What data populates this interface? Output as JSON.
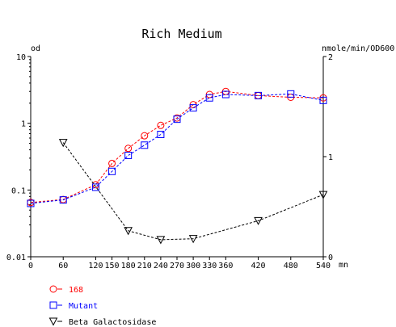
{
  "chart_data": {
    "type": "line",
    "title": "Rich Medium",
    "x": {
      "unit": "mn",
      "range": [
        0,
        540
      ],
      "ticks": [
        0,
        60,
        120,
        150,
        180,
        210,
        240,
        270,
        300,
        330,
        360,
        420,
        480,
        540
      ]
    },
    "y_left": {
      "label": "od",
      "scale": "log",
      "range": [
        0.01,
        10
      ],
      "ticks": [
        0.01,
        0.1,
        1,
        10
      ],
      "tick_labels": [
        "0.01",
        "0.1",
        "1",
        "10"
      ]
    },
    "y_right": {
      "label": "nmole/min/OD600",
      "scale": "linear",
      "range": [
        0,
        2
      ],
      "ticks": [
        0,
        1,
        2
      ],
      "tick_labels": [
        "0",
        "1",
        "2"
      ]
    },
    "series": [
      {
        "name": "168",
        "axis": "left",
        "marker": "circle",
        "color": "#ff0000",
        "x": [
          0,
          60,
          120,
          150,
          180,
          210,
          240,
          270,
          300,
          330,
          360,
          420,
          480,
          540
        ],
        "values": [
          0.065,
          0.072,
          0.12,
          0.25,
          0.42,
          0.65,
          0.93,
          1.2,
          1.9,
          2.7,
          3.0,
          2.6,
          2.45,
          2.4
        ]
      },
      {
        "name": "Mutant",
        "axis": "left",
        "marker": "square",
        "color": "#0000ff",
        "x": [
          0,
          60,
          120,
          150,
          180,
          210,
          240,
          270,
          300,
          330,
          360,
          420,
          480,
          540
        ],
        "values": [
          0.063,
          0.071,
          0.11,
          0.19,
          0.33,
          0.47,
          0.68,
          1.15,
          1.7,
          2.4,
          2.7,
          2.6,
          2.75,
          2.2
        ]
      },
      {
        "name": "Beta Galactosidase",
        "axis": "right",
        "marker": "triangle-down",
        "color": "#000000",
        "x": [
          60,
          180,
          240,
          300,
          420,
          540
        ],
        "values": [
          1.14,
          0.26,
          0.17,
          0.18,
          0.36,
          0.62
        ]
      }
    ],
    "legend": {
      "position": "bottom-left"
    }
  }
}
